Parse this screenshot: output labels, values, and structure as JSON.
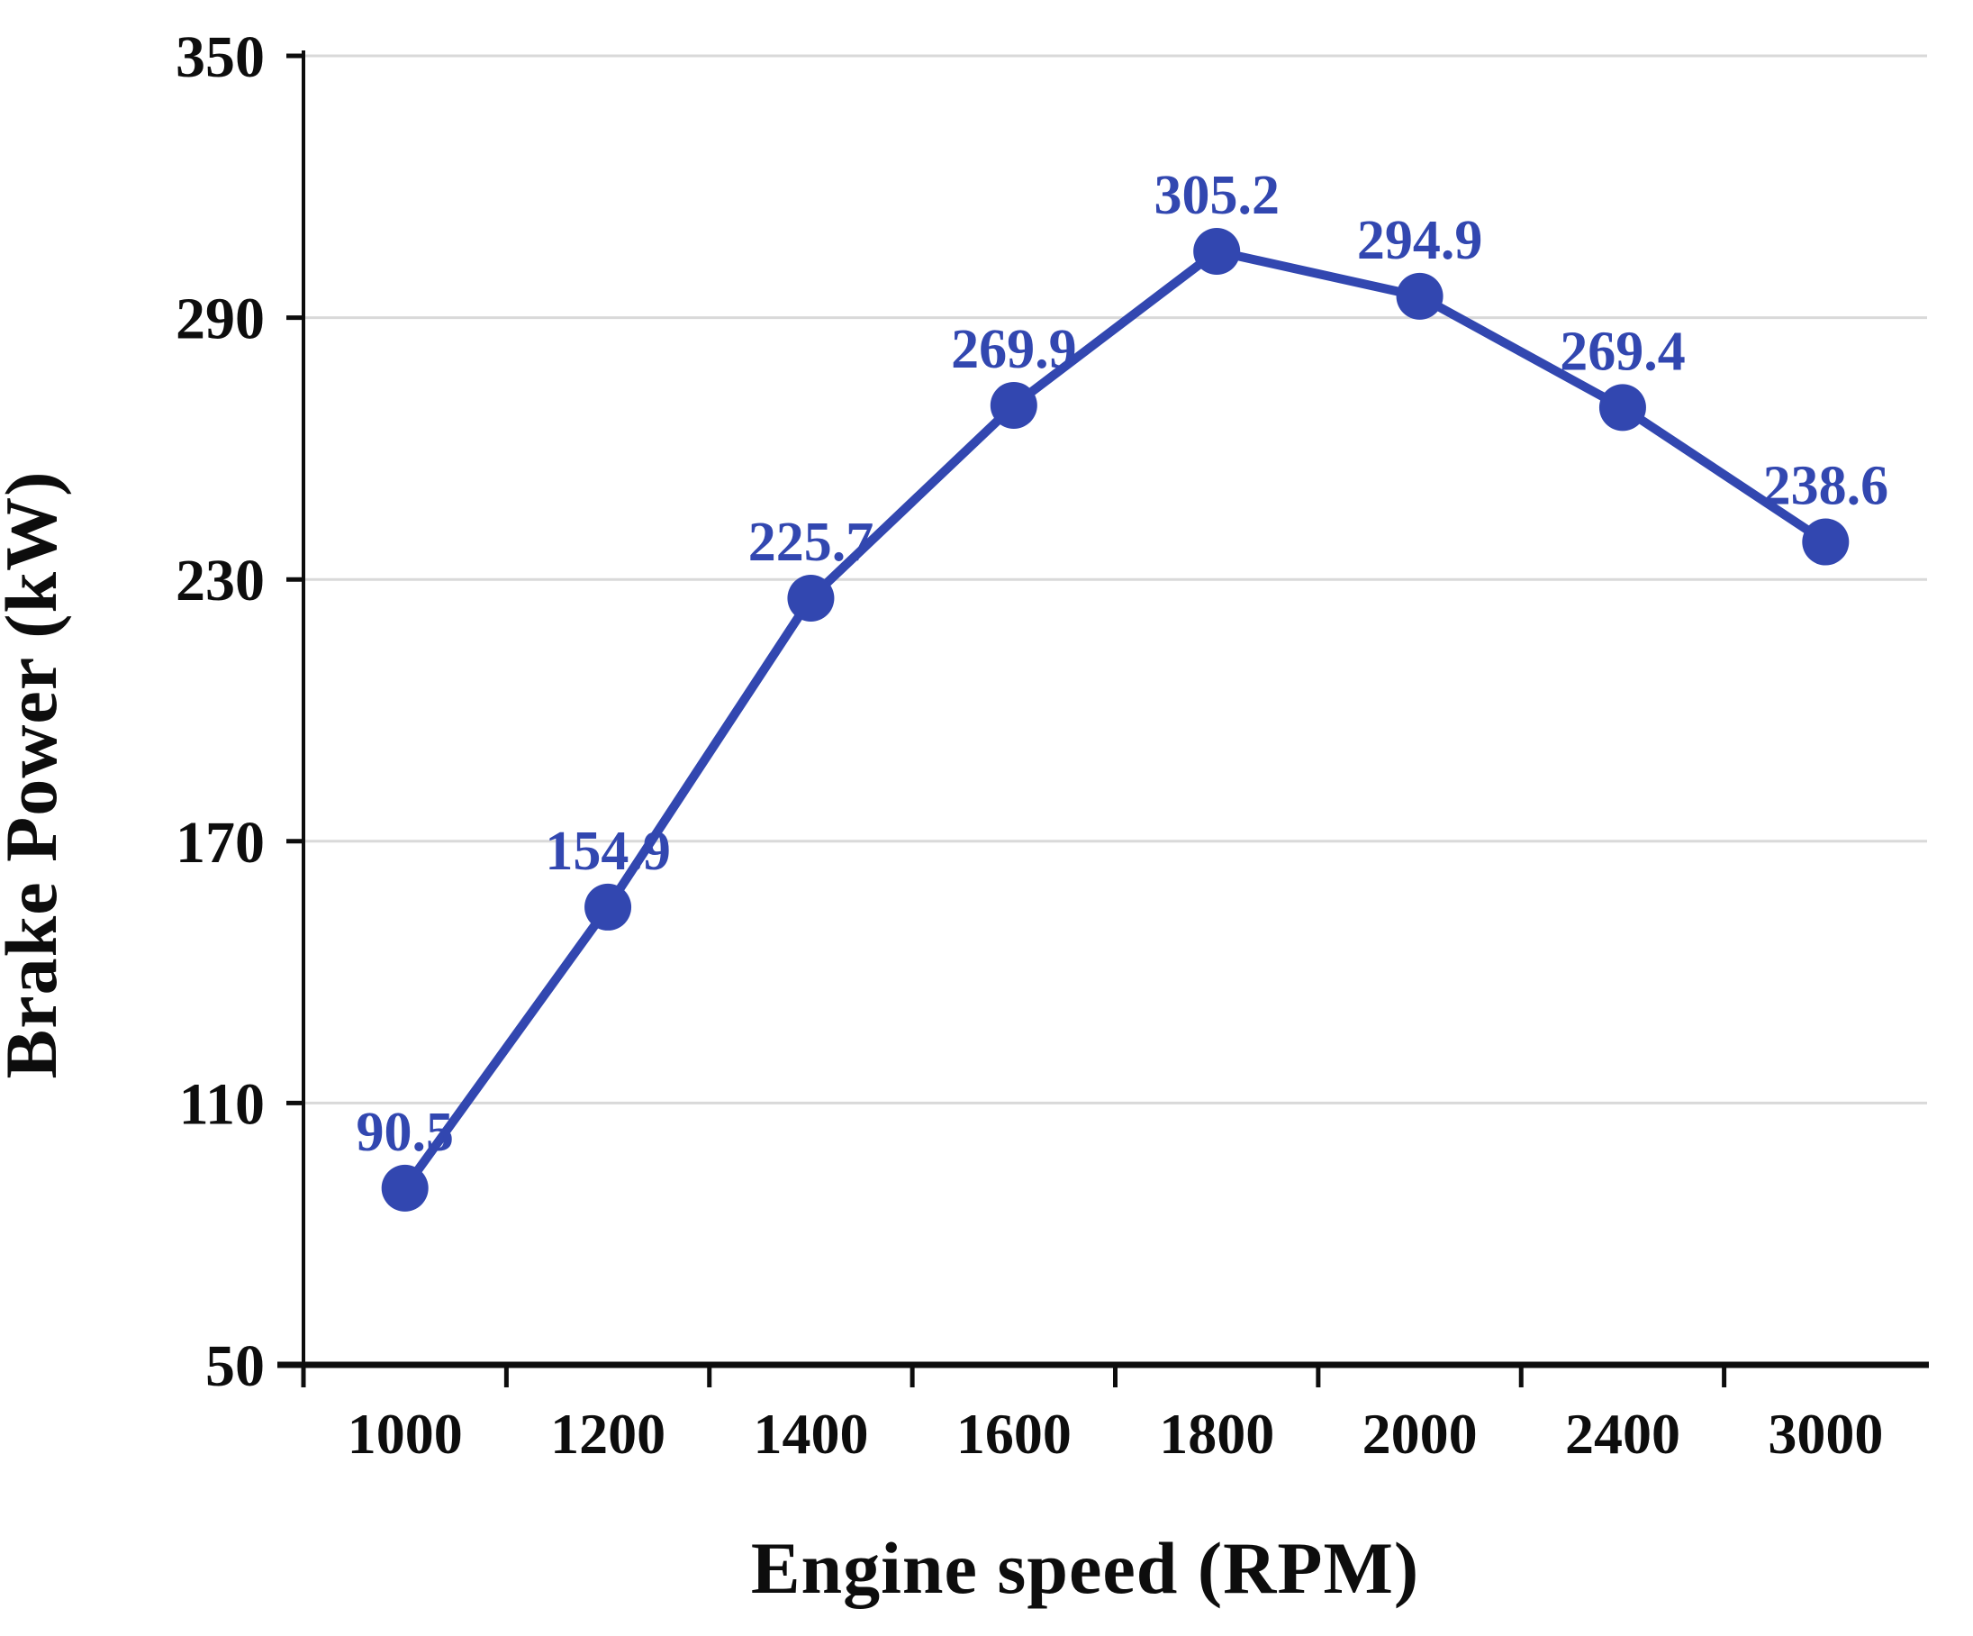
{
  "chart_data": {
    "type": "line",
    "title": "",
    "xlabel": "Engine speed (RPM)",
    "ylabel": "Brake Power (kW)",
    "categories": [
      "1000",
      "1200",
      "1400",
      "1600",
      "1800",
      "2000",
      "2400",
      "3000"
    ],
    "values": [
      90.5,
      154.9,
      225.7,
      269.9,
      305.2,
      294.9,
      269.4,
      238.6
    ],
    "data_labels": [
      "90.5",
      "154.9",
      "225.7",
      "269.9",
      "305.2",
      "294.9",
      "269.4",
      "238.6"
    ],
    "ylim": [
      50,
      350
    ],
    "yticks": [
      50,
      110,
      170,
      230,
      290,
      350
    ],
    "grid": "horizontal",
    "legend": "none",
    "marker": "circle",
    "colors": {
      "series": "#3247b0",
      "gridline": "#d9d9d9",
      "axis": "#0d0d0d",
      "text": "#0d0d0d",
      "background": "#ffffff"
    }
  }
}
